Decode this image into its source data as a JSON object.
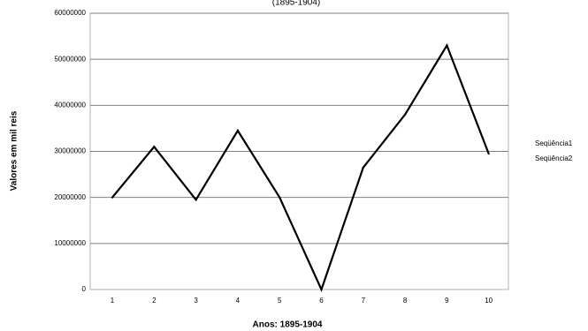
{
  "chart_data": {
    "type": "line",
    "title": "",
    "subtitle": "(1895-1904)",
    "xlabel": "Anos: 1895-1904",
    "ylabel": "Valores em mil reis",
    "categories": [
      "1",
      "2",
      "3",
      "4",
      "5",
      "6",
      "7",
      "8",
      "9",
      "10"
    ],
    "ylim": [
      0,
      60000000
    ],
    "yticks": [
      "0",
      "10000000",
      "20000000",
      "30000000",
      "40000000",
      "50000000",
      "60000000"
    ],
    "grid": true,
    "legend_position": "right",
    "legend": [
      "Seqüência1",
      "Seqüência2"
    ],
    "series": [
      {
        "name": "Seqüência1",
        "values": [
          20000000,
          31000000,
          19500000,
          34500000,
          20000000,
          0,
          26500000,
          38000000,
          53000000,
          29500000
        ]
      }
    ],
    "colors": {
      "line": "#000000",
      "grid": "#808080",
      "plot_border": "#b3b3b3",
      "background": "#ffffff"
    }
  }
}
